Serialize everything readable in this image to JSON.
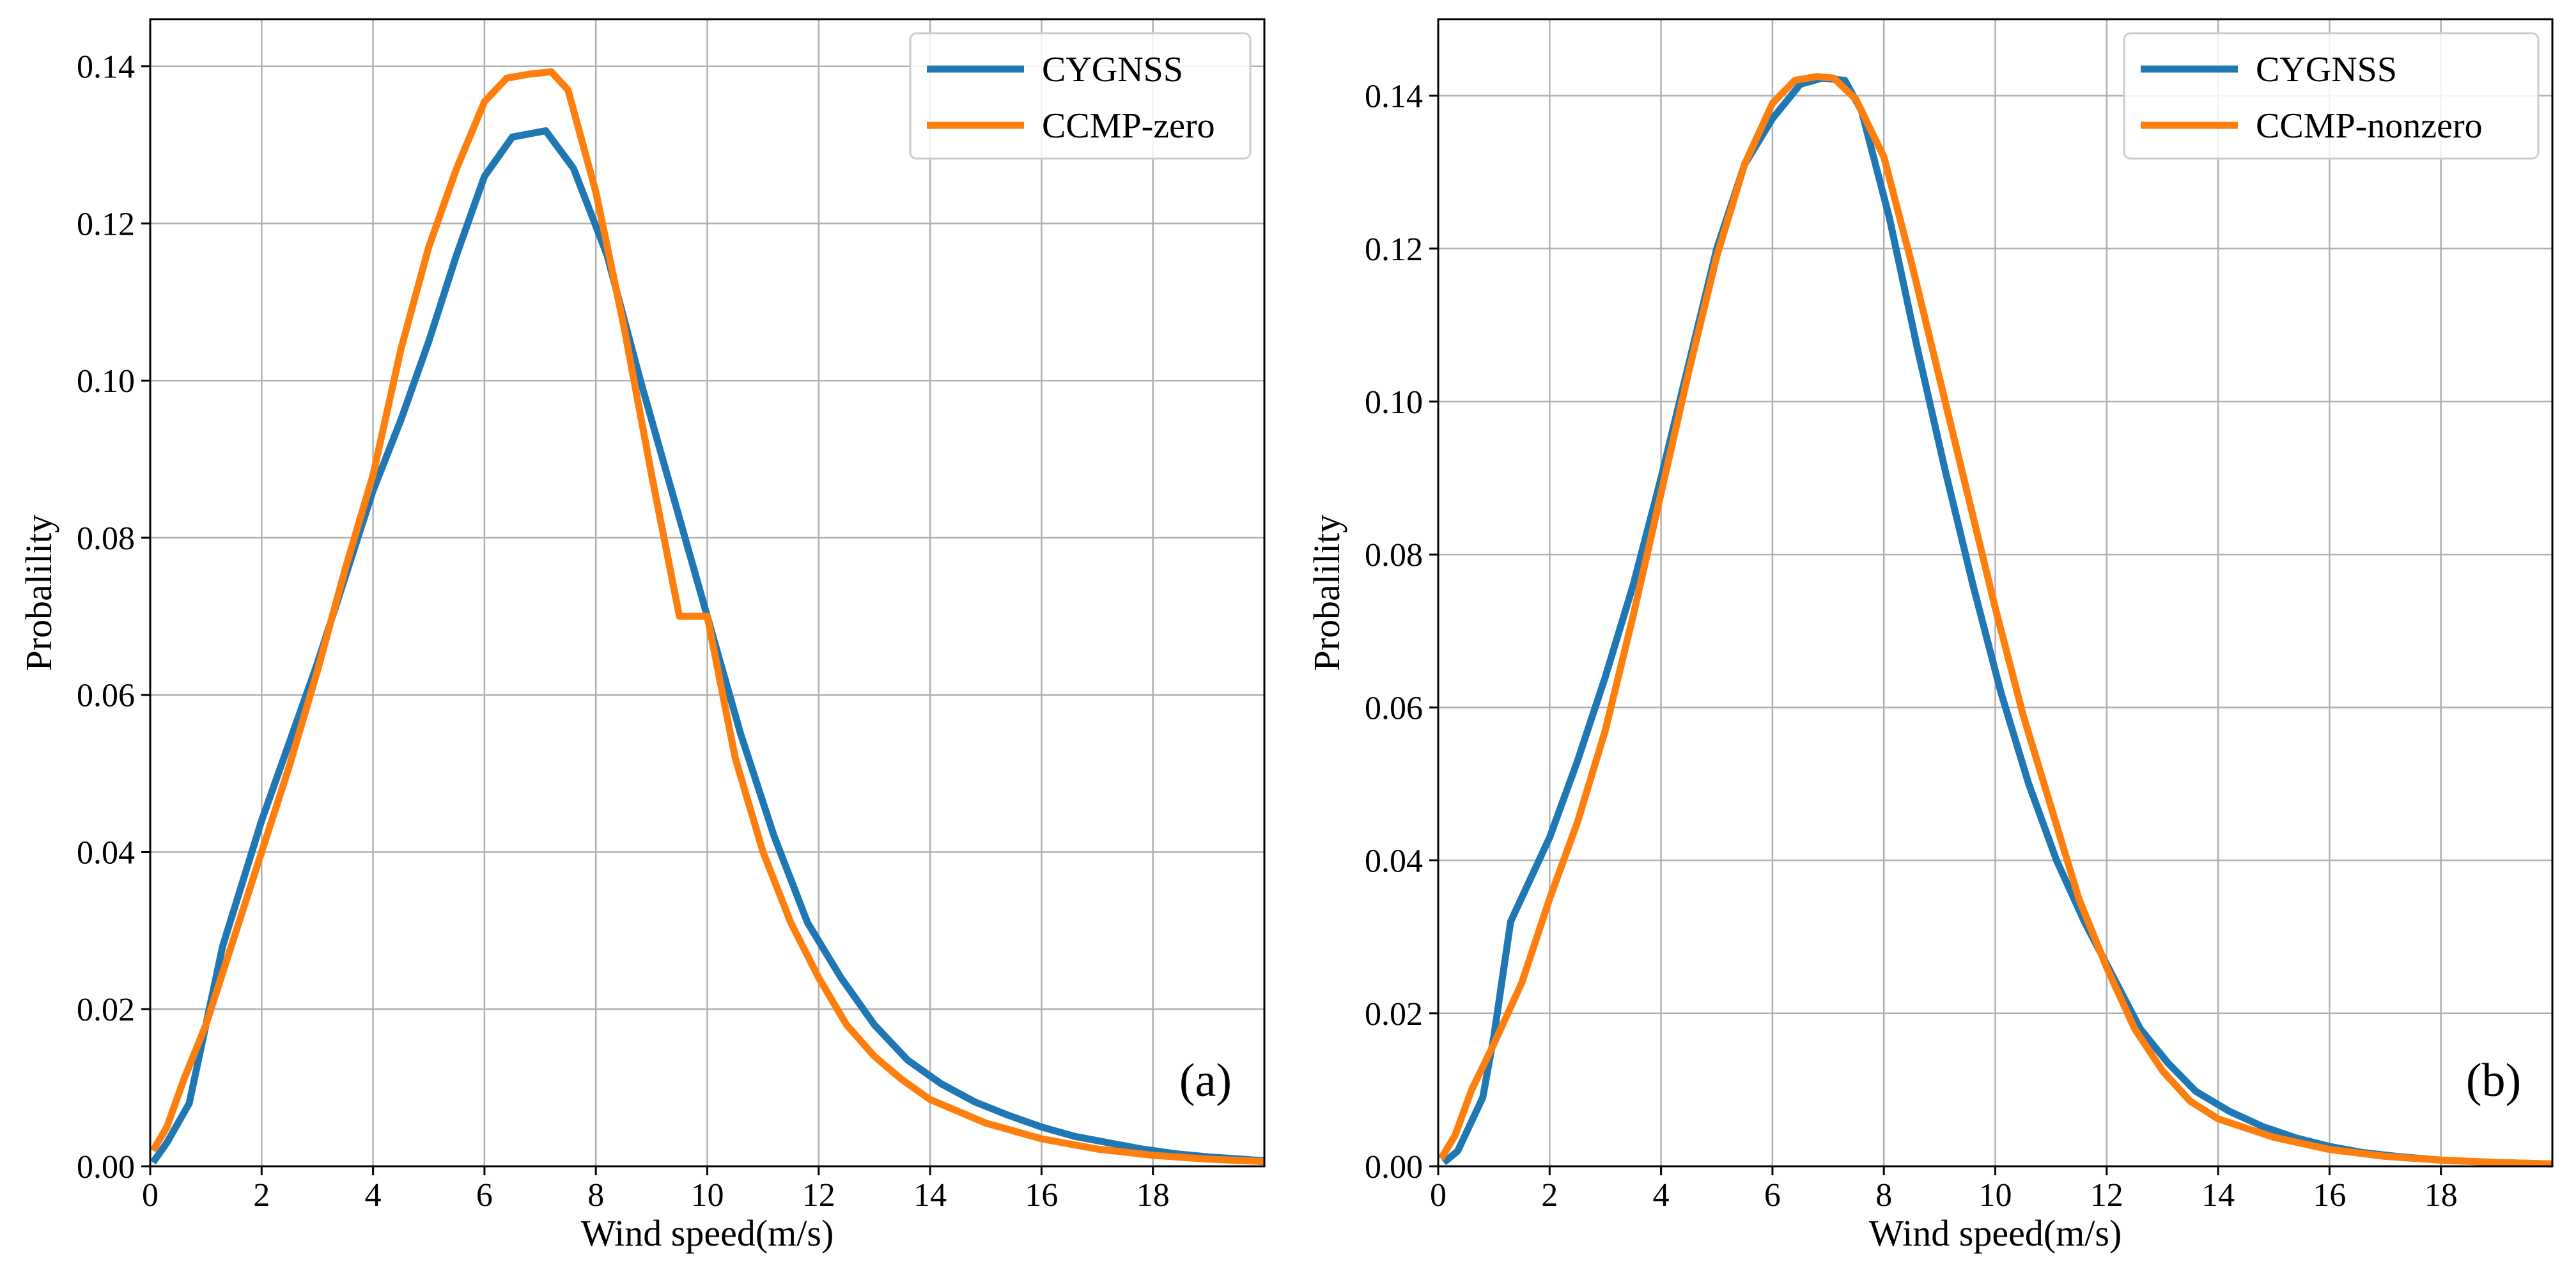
{
  "colors": {
    "cygnss": "#1f77b4",
    "ccmp": "#ff7f0e",
    "grid": "#b0b0b0",
    "legend_border": "#cccccc"
  },
  "chart_data": [
    {
      "type": "line",
      "panel_label": "(a)",
      "xlabel": "Wind speed(m/s)",
      "ylabel": "Probalility",
      "xlim": [
        0,
        20
      ],
      "ylim": [
        0,
        0.146
      ],
      "xticks": [
        0,
        2,
        4,
        6,
        8,
        10,
        12,
        14,
        16,
        18
      ],
      "yticks": [
        0.0,
        0.02,
        0.04,
        0.06,
        0.08,
        0.1,
        0.12,
        0.14
      ],
      "ytick_labels": [
        "0.00",
        "0.02",
        "0.04",
        "0.06",
        "0.08",
        "0.10",
        "0.12",
        "0.14"
      ],
      "grid": true,
      "legend_position": "top-right",
      "series": [
        {
          "name": "CYGNSS",
          "color": "#1f77b4",
          "x": [
            0.05,
            0.3,
            0.7,
            1.0,
            1.3,
            2.0,
            2.5,
            3.0,
            3.5,
            4.0,
            4.5,
            5.0,
            5.5,
            6.0,
            6.5,
            7.1,
            7.6,
            8.2,
            8.8,
            9.4,
            10.0,
            10.6,
            11.2,
            11.8,
            12.4,
            13.0,
            13.6,
            14.2,
            14.8,
            15.4,
            16.0,
            16.6,
            17.2,
            17.8,
            18.4,
            19.0,
            19.6,
            20.0
          ],
          "values": [
            0.0005,
            0.003,
            0.008,
            0.018,
            0.028,
            0.044,
            0.054,
            0.064,
            0.075,
            0.086,
            0.095,
            0.105,
            0.116,
            0.126,
            0.131,
            0.1318,
            0.127,
            0.116,
            0.1,
            0.085,
            0.07,
            0.055,
            0.042,
            0.031,
            0.024,
            0.018,
            0.0135,
            0.0105,
            0.0082,
            0.0065,
            0.005,
            0.0038,
            0.003,
            0.0022,
            0.0016,
            0.0012,
            0.0009,
            0.0007
          ]
        },
        {
          "name": "CCMP-zero",
          "color": "#ff7f0e",
          "x": [
            0.05,
            0.3,
            0.6,
            1.0,
            1.5,
            2.0,
            2.5,
            3.0,
            3.5,
            4.0,
            4.5,
            5.0,
            5.5,
            6.0,
            6.4,
            6.8,
            7.2,
            7.5,
            8.0,
            8.5,
            9.0,
            9.5,
            10.0,
            10.5,
            11.0,
            11.5,
            12.0,
            12.5,
            13.0,
            13.5,
            14.0,
            15.0,
            16.0,
            17.0,
            18.0,
            19.0,
            20.0
          ],
          "values": [
            0.002,
            0.005,
            0.011,
            0.018,
            0.029,
            0.04,
            0.051,
            0.063,
            0.076,
            0.088,
            0.104,
            0.117,
            0.127,
            0.1355,
            0.1385,
            0.139,
            0.1393,
            0.137,
            0.124,
            0.107,
            0.088,
            0.07,
            0.07,
            0.052,
            0.04,
            0.031,
            0.024,
            0.018,
            0.014,
            0.011,
            0.0085,
            0.0055,
            0.0035,
            0.0022,
            0.0014,
            0.0009,
            0.0006
          ]
        }
      ]
    },
    {
      "type": "line",
      "panel_label": "(b)",
      "xlabel": "Wind speed(m/s)",
      "ylabel": "Probalility",
      "xlim": [
        0,
        20
      ],
      "ylim": [
        0,
        0.15
      ],
      "xticks": [
        0,
        2,
        4,
        6,
        8,
        10,
        12,
        14,
        16,
        18
      ],
      "yticks": [
        0.0,
        0.02,
        0.04,
        0.06,
        0.08,
        0.1,
        0.12,
        0.14
      ],
      "ytick_labels": [
        "0.00",
        "0.02",
        "0.04",
        "0.06",
        "0.08",
        "0.10",
        "0.12",
        "0.14"
      ],
      "grid": true,
      "legend_position": "top-right",
      "series": [
        {
          "name": "CYGNSS",
          "color": "#1f77b4",
          "x": [
            0.1,
            0.35,
            0.8,
            1.0,
            1.3,
            2.0,
            2.5,
            3.0,
            3.5,
            4.0,
            4.5,
            5.0,
            5.5,
            6.0,
            6.5,
            6.9,
            7.3,
            7.6,
            8.1,
            8.6,
            9.1,
            9.6,
            10.1,
            10.6,
            11.1,
            11.6,
            12.1,
            12.6,
            13.1,
            13.6,
            14.2,
            14.8,
            15.4,
            16.0,
            16.6,
            17.2,
            18.0,
            19.0,
            20.0
          ],
          "values": [
            0.0005,
            0.002,
            0.009,
            0.017,
            0.032,
            0.043,
            0.053,
            0.064,
            0.076,
            0.09,
            0.105,
            0.12,
            0.131,
            0.137,
            0.1415,
            0.1423,
            0.142,
            0.138,
            0.124,
            0.107,
            0.091,
            0.076,
            0.062,
            0.05,
            0.04,
            0.032,
            0.025,
            0.018,
            0.0135,
            0.0098,
            0.0072,
            0.0052,
            0.0037,
            0.0026,
            0.0018,
            0.0013,
            0.0008,
            0.0005,
            0.0003
          ]
        },
        {
          "name": "CCMP-nonzero",
          "color": "#ff7f0e",
          "x": [
            0.05,
            0.3,
            0.6,
            1.0,
            1.5,
            2.0,
            2.5,
            3.0,
            3.5,
            4.0,
            4.5,
            5.0,
            5.5,
            6.0,
            6.4,
            6.8,
            7.1,
            7.5,
            8.0,
            8.5,
            9.0,
            9.5,
            10.0,
            10.5,
            11.0,
            11.5,
            12.0,
            12.5,
            13.0,
            13.5,
            14.0,
            15.0,
            16.0,
            17.0,
            18.0,
            19.0,
            20.0
          ],
          "values": [
            0.001,
            0.004,
            0.01,
            0.016,
            0.024,
            0.035,
            0.045,
            0.057,
            0.072,
            0.088,
            0.104,
            0.119,
            0.131,
            0.139,
            0.142,
            0.1425,
            0.1423,
            0.1395,
            0.132,
            0.118,
            0.103,
            0.088,
            0.073,
            0.059,
            0.047,
            0.035,
            0.026,
            0.018,
            0.0125,
            0.0085,
            0.0062,
            0.0038,
            0.0022,
            0.0013,
            0.0008,
            0.0005,
            0.0003
          ]
        }
      ]
    }
  ]
}
